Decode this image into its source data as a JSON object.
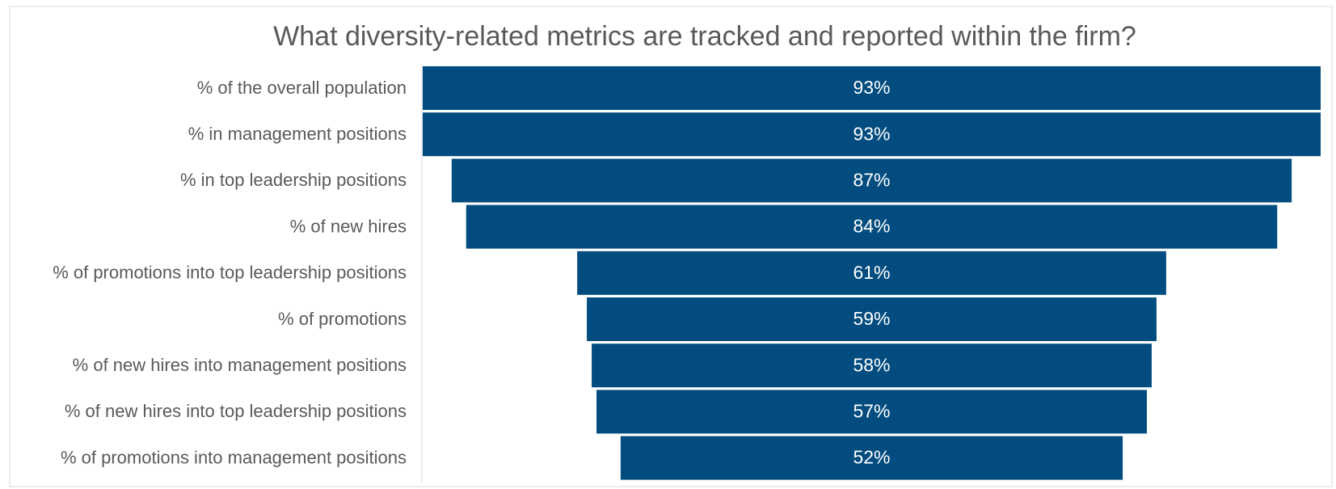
{
  "chart_data": {
    "type": "funnel",
    "title": "What diversity-related metrics are tracked and reported within the firm?",
    "categories": [
      "% of the overall population",
      "% in management positions",
      "% in top leadership positions",
      "% of new hires",
      "% of promotions into top leadership positions",
      "% of promotions",
      "% of new hires into management positions",
      "% of new hires into top leadership positions",
      "% of promotions into management positions"
    ],
    "values": [
      93,
      93,
      87,
      84,
      61,
      59,
      58,
      57,
      52
    ],
    "value_labels": [
      "93%",
      "93%",
      "87%",
      "84%",
      "61%",
      "59%",
      "58%",
      "57%",
      "52%"
    ],
    "color": "#024c7f"
  }
}
